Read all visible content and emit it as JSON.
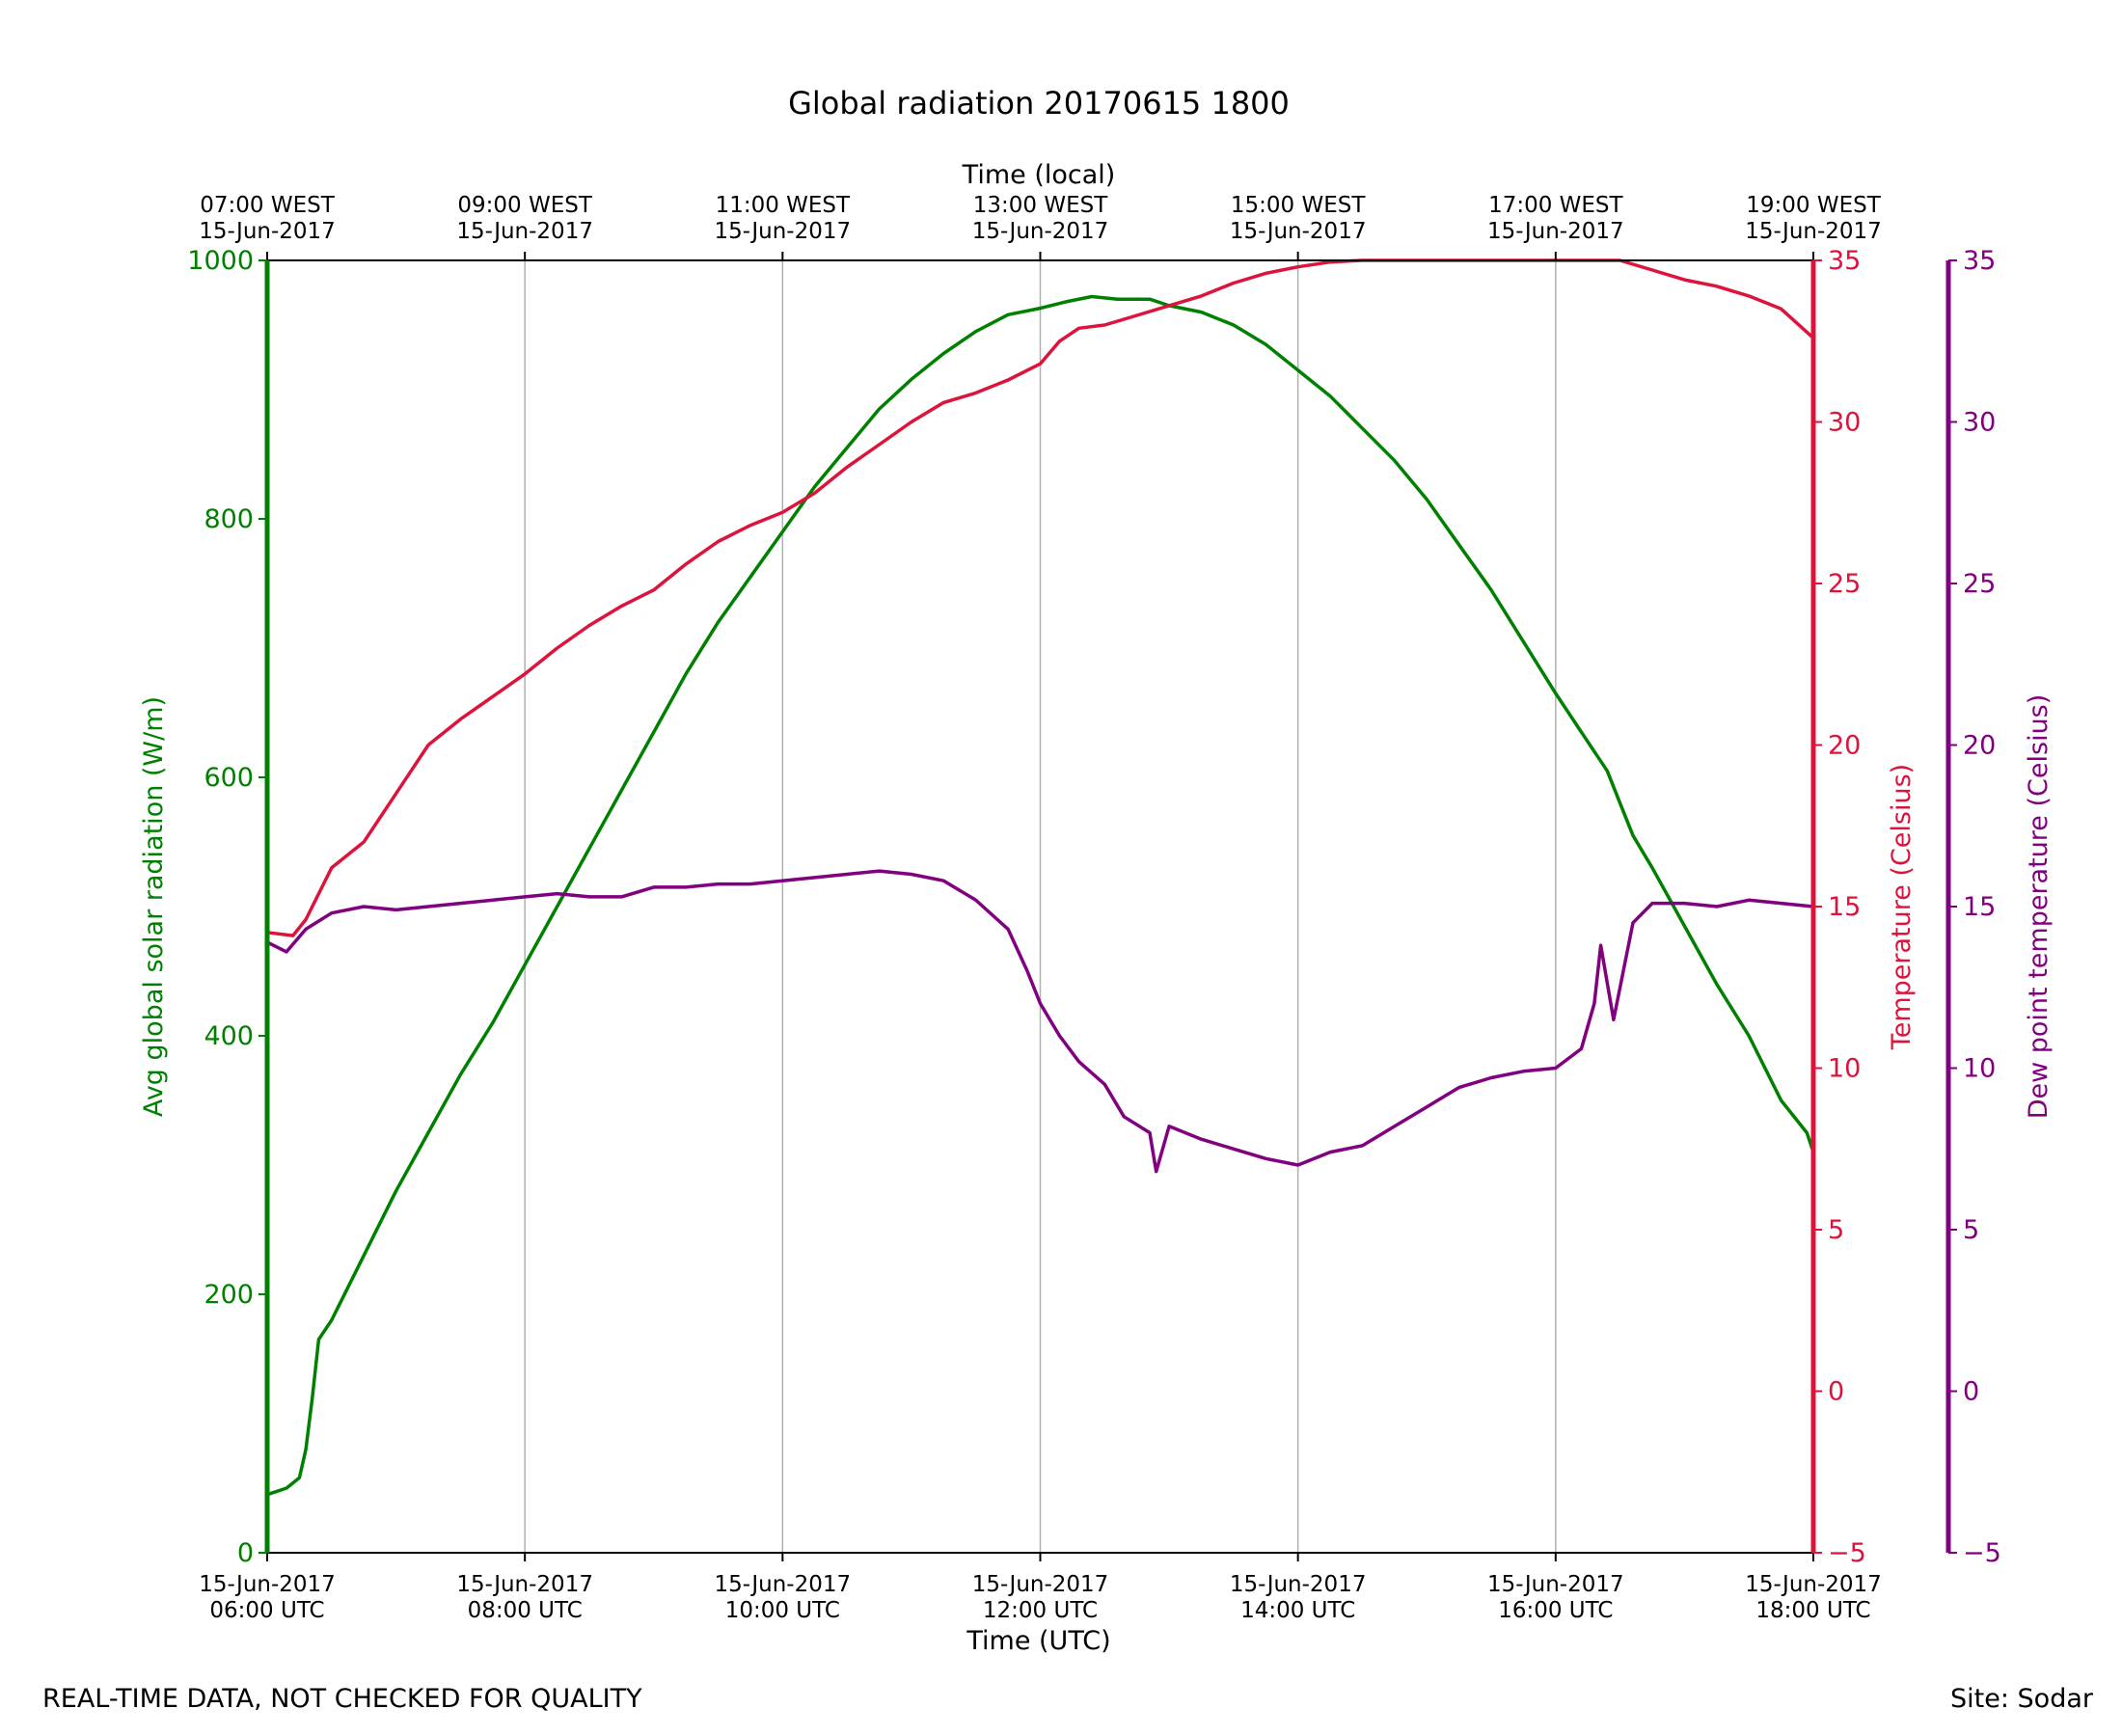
{
  "chart_data": {
    "type": "line",
    "title": "Global radiation 20170615 1800",
    "xlabel": "Time (UTC)",
    "xlabel_top": "Time (local)",
    "x_domain_hours": [
      6,
      18
    ],
    "x_ticks_bottom": [
      {
        "h": 6,
        "l1": "15-Jun-2017",
        "l2": "06:00 UTC"
      },
      {
        "h": 8,
        "l1": "15-Jun-2017",
        "l2": "08:00 UTC"
      },
      {
        "h": 10,
        "l1": "15-Jun-2017",
        "l2": "10:00 UTC"
      },
      {
        "h": 12,
        "l1": "15-Jun-2017",
        "l2": "12:00 UTC"
      },
      {
        "h": 14,
        "l1": "15-Jun-2017",
        "l2": "14:00 UTC"
      },
      {
        "h": 16,
        "l1": "15-Jun-2017",
        "l2": "16:00 UTC"
      },
      {
        "h": 18,
        "l1": "15-Jun-2017",
        "l2": "18:00 UTC"
      }
    ],
    "x_ticks_top": [
      {
        "h": 6,
        "l1": "07:00 WEST",
        "l2": "15-Jun-2017"
      },
      {
        "h": 8,
        "l1": "09:00 WEST",
        "l2": "15-Jun-2017"
      },
      {
        "h": 10,
        "l1": "11:00 WEST",
        "l2": "15-Jun-2017"
      },
      {
        "h": 12,
        "l1": "13:00 WEST",
        "l2": "15-Jun-2017"
      },
      {
        "h": 14,
        "l1": "15:00 WEST",
        "l2": "15-Jun-2017"
      },
      {
        "h": 16,
        "l1": "17:00 WEST",
        "l2": "15-Jun-2017"
      },
      {
        "h": 18,
        "l1": "19:00 WEST",
        "l2": "15-Jun-2017"
      }
    ],
    "axes": {
      "radiation": {
        "label": "Avg global solar radiation (W/m)",
        "ylim": [
          0,
          1000
        ],
        "ticks": [
          0,
          200,
          400,
          600,
          800,
          1000
        ],
        "color": "#008000"
      },
      "temperature": {
        "label": "Temperature (Celsius)",
        "ylim": [
          -5,
          35
        ],
        "ticks": [
          "−5",
          "0",
          "5",
          "10",
          "15",
          "20",
          "25",
          "30",
          "35"
        ],
        "color": "#dc143c"
      },
      "dewpoint": {
        "label": "Dew point temperature (Celsius)",
        "ylim": [
          -5,
          35
        ],
        "ticks": [
          "−5",
          "0",
          "5",
          "10",
          "15",
          "20",
          "25",
          "30",
          "35"
        ],
        "color": "#800080"
      }
    },
    "series": [
      {
        "name": "radiation",
        "axis": "radiation",
        "color": "#008000",
        "points": [
          [
            6.0,
            45
          ],
          [
            6.15,
            50
          ],
          [
            6.25,
            58
          ],
          [
            6.3,
            80
          ],
          [
            6.35,
            120
          ],
          [
            6.4,
            165
          ],
          [
            6.5,
            180
          ],
          [
            6.75,
            230
          ],
          [
            7.0,
            280
          ],
          [
            7.25,
            325
          ],
          [
            7.5,
            370
          ],
          [
            7.75,
            410
          ],
          [
            8.0,
            455
          ],
          [
            8.25,
            500
          ],
          [
            8.5,
            545
          ],
          [
            8.75,
            590
          ],
          [
            9.0,
            635
          ],
          [
            9.25,
            680
          ],
          [
            9.5,
            720
          ],
          [
            9.75,
            755
          ],
          [
            10.0,
            790
          ],
          [
            10.25,
            825
          ],
          [
            10.5,
            855
          ],
          [
            10.75,
            885
          ],
          [
            11.0,
            908
          ],
          [
            11.25,
            928
          ],
          [
            11.5,
            945
          ],
          [
            11.75,
            958
          ],
          [
            12.0,
            963
          ],
          [
            12.2,
            968
          ],
          [
            12.4,
            972
          ],
          [
            12.6,
            970
          ],
          [
            12.85,
            970
          ],
          [
            13.0,
            965
          ],
          [
            13.25,
            960
          ],
          [
            13.5,
            950
          ],
          [
            13.75,
            935
          ],
          [
            14.0,
            915
          ],
          [
            14.25,
            895
          ],
          [
            14.5,
            870
          ],
          [
            14.75,
            845
          ],
          [
            15.0,
            815
          ],
          [
            15.25,
            780
          ],
          [
            15.5,
            745
          ],
          [
            15.75,
            705
          ],
          [
            16.0,
            665
          ],
          [
            16.2,
            635
          ],
          [
            16.4,
            605
          ],
          [
            16.5,
            580
          ],
          [
            16.6,
            555
          ],
          [
            16.75,
            530
          ],
          [
            17.0,
            485
          ],
          [
            17.25,
            440
          ],
          [
            17.5,
            400
          ],
          [
            17.75,
            350
          ],
          [
            17.95,
            325
          ],
          [
            18.0,
            310
          ]
        ]
      },
      {
        "name": "temperature",
        "axis": "temperature",
        "color": "#dc143c",
        "points": [
          [
            6.0,
            14.2
          ],
          [
            6.2,
            14.1
          ],
          [
            6.3,
            14.6
          ],
          [
            6.5,
            16.2
          ],
          [
            6.75,
            17.0
          ],
          [
            7.0,
            18.5
          ],
          [
            7.25,
            20.0
          ],
          [
            7.5,
            20.8
          ],
          [
            7.75,
            21.5
          ],
          [
            8.0,
            22.2
          ],
          [
            8.25,
            23.0
          ],
          [
            8.5,
            23.7
          ],
          [
            8.75,
            24.3
          ],
          [
            9.0,
            24.8
          ],
          [
            9.25,
            25.6
          ],
          [
            9.5,
            26.3
          ],
          [
            9.75,
            26.8
          ],
          [
            10.0,
            27.2
          ],
          [
            10.25,
            27.8
          ],
          [
            10.5,
            28.6
          ],
          [
            10.75,
            29.3
          ],
          [
            11.0,
            30.0
          ],
          [
            11.25,
            30.6
          ],
          [
            11.5,
            30.9
          ],
          [
            11.75,
            31.3
          ],
          [
            12.0,
            31.8
          ],
          [
            12.15,
            32.5
          ],
          [
            12.3,
            32.9
          ],
          [
            12.5,
            33.0
          ],
          [
            12.75,
            33.3
          ],
          [
            13.0,
            33.6
          ],
          [
            13.25,
            33.9
          ],
          [
            13.5,
            34.3
          ],
          [
            13.75,
            34.6
          ],
          [
            14.0,
            34.8
          ],
          [
            14.25,
            34.95
          ],
          [
            14.5,
            35.0
          ],
          [
            15.0,
            35.0
          ],
          [
            16.0,
            35.0
          ],
          [
            16.5,
            35.0
          ],
          [
            16.75,
            34.7
          ],
          [
            17.0,
            34.4
          ],
          [
            17.25,
            34.2
          ],
          [
            17.5,
            33.9
          ],
          [
            17.75,
            33.5
          ],
          [
            18.0,
            32.6
          ]
        ]
      },
      {
        "name": "dewpoint",
        "axis": "dewpoint",
        "color": "#800080",
        "points": [
          [
            6.0,
            13.9
          ],
          [
            6.15,
            13.6
          ],
          [
            6.3,
            14.3
          ],
          [
            6.5,
            14.8
          ],
          [
            6.75,
            15.0
          ],
          [
            7.0,
            14.9
          ],
          [
            7.25,
            15.0
          ],
          [
            7.5,
            15.1
          ],
          [
            7.75,
            15.2
          ],
          [
            8.0,
            15.3
          ],
          [
            8.25,
            15.4
          ],
          [
            8.5,
            15.3
          ],
          [
            8.75,
            15.3
          ],
          [
            9.0,
            15.6
          ],
          [
            9.25,
            15.6
          ],
          [
            9.5,
            15.7
          ],
          [
            9.75,
            15.7
          ],
          [
            10.0,
            15.8
          ],
          [
            10.25,
            15.9
          ],
          [
            10.5,
            16.0
          ],
          [
            10.75,
            16.1
          ],
          [
            11.0,
            16.0
          ],
          [
            11.25,
            15.8
          ],
          [
            11.5,
            15.2
          ],
          [
            11.75,
            14.3
          ],
          [
            11.9,
            13.0
          ],
          [
            12.0,
            12.0
          ],
          [
            12.15,
            11.0
          ],
          [
            12.3,
            10.2
          ],
          [
            12.5,
            9.5
          ],
          [
            12.65,
            8.5
          ],
          [
            12.85,
            8.0
          ],
          [
            12.9,
            6.8
          ],
          [
            13.0,
            8.2
          ],
          [
            13.25,
            7.8
          ],
          [
            13.5,
            7.5
          ],
          [
            13.75,
            7.2
          ],
          [
            14.0,
            7.0
          ],
          [
            14.25,
            7.4
          ],
          [
            14.5,
            7.6
          ],
          [
            14.75,
            8.2
          ],
          [
            15.0,
            8.8
          ],
          [
            15.25,
            9.4
          ],
          [
            15.5,
            9.7
          ],
          [
            15.75,
            9.9
          ],
          [
            16.0,
            10.0
          ],
          [
            16.2,
            10.6
          ],
          [
            16.3,
            12.0
          ],
          [
            16.35,
            13.8
          ],
          [
            16.45,
            11.5
          ],
          [
            16.5,
            12.5
          ],
          [
            16.6,
            14.5
          ],
          [
            16.75,
            15.1
          ],
          [
            17.0,
            15.1
          ],
          [
            17.25,
            15.0
          ],
          [
            17.5,
            15.2
          ],
          [
            17.75,
            15.1
          ],
          [
            18.0,
            15.0
          ]
        ]
      }
    ]
  },
  "footer": {
    "left": "REAL-TIME DATA, NOT CHECKED FOR QUALITY",
    "right": "Site: Sodar"
  }
}
